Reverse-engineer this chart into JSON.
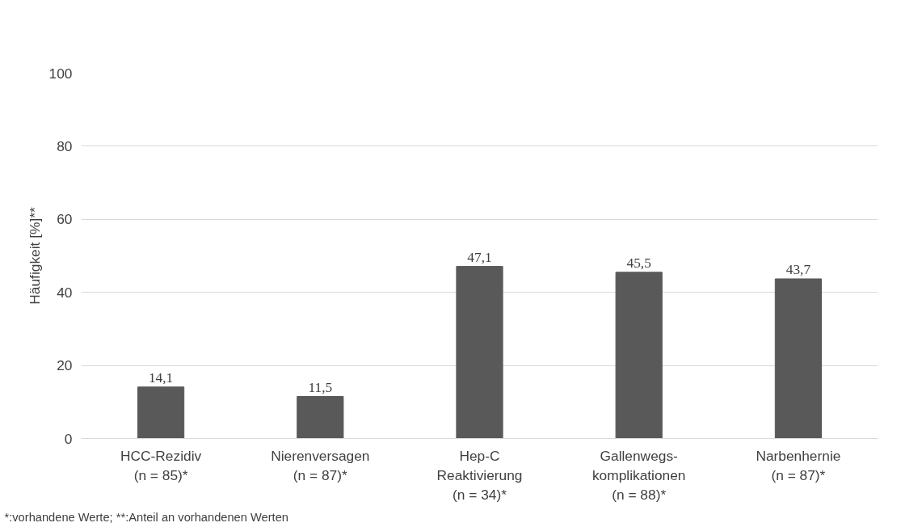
{
  "chart_data": {
    "type": "bar",
    "ylabel": "Häufigkeit [%]**",
    "categories": [
      "HCC-Rezidiv\n(n = 85)*",
      "Nierenversagen\n(n = 87)*",
      "Hep-C\nReaktivierung\n(n = 34)*",
      "Gallenwegs-\nkomplikationen\n(n = 88)*",
      "Narbenhernie\n(n = 87)*"
    ],
    "values": [
      14.1,
      11.5,
      47.1,
      45.5,
      43.7
    ],
    "value_labels": [
      "14,1",
      "11,5",
      "47,1",
      "45,5",
      "43,7"
    ],
    "color": "#595959",
    "ylim": [
      0,
      100
    ],
    "yticks": [
      0,
      20,
      40,
      60,
      80,
      100
    ],
    "grid": "y",
    "annotations": [
      "*:vorhandene Werte; **:Anteil an vorhandenen Werten"
    ]
  }
}
